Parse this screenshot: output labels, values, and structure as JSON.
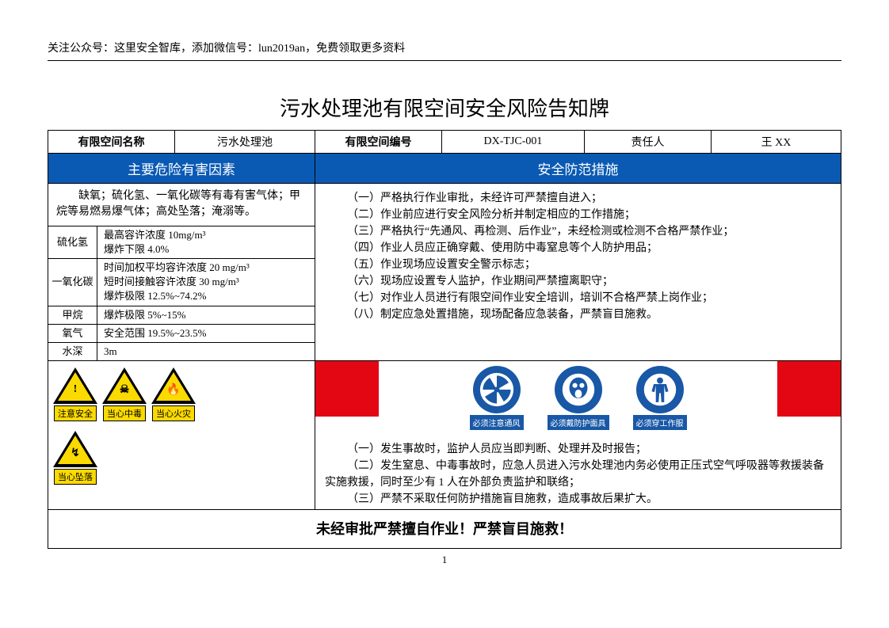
{
  "header_note": "关注公众号：这里安全智库，添加微信号：lun2019an，免费领取更多资料",
  "title": "污水处理池有限空间安全风险告知牌",
  "info_row": {
    "name_label": "有限空间名称",
    "name_value": "污水处理池",
    "id_label": "有限空间编号",
    "id_value": "DX-TJC-001",
    "owner_label": "责任人",
    "owner_value": "王 XX"
  },
  "banner": {
    "left": "主要危险有害因素",
    "right": "安全防范措施",
    "bg_color": "#0a5ab4"
  },
  "hazard_desc": "　　缺氧；硫化氢、一氧化碳等有毒有害气体；甲烷等易燃易爆气体；高处坠落；淹溺等。",
  "hazard_rows": [
    {
      "name": "硫化氢",
      "lines": [
        "最高容许浓度 10mg/m³",
        "爆炸下限 4.0%"
      ]
    },
    {
      "name": "一氧化碳",
      "lines": [
        "时间加权平均容许浓度 20 mg/m³",
        "短时间接触容许浓度 30 mg/m³",
        "爆炸极限 12.5%~74.2%"
      ]
    },
    {
      "name": "甲烷",
      "lines": [
        "爆炸极限 5%~15%"
      ]
    },
    {
      "name": "氧气",
      "lines": [
        "安全范围 19.5%~23.5%"
      ]
    },
    {
      "name": "水深",
      "lines": [
        "3m"
      ]
    }
  ],
  "measures": [
    "（一）严格执行作业审批，未经许可严禁擅自进入；",
    "（二）作业前应进行安全风险分析并制定相应的工作措施；",
    "（三）严格执行“先通风、再检测、后作业”，未经检测或检测不合格严禁作业；",
    "（四）作业人员应正确穿戴、使用防中毒窒息等个人防护用品；",
    "（五）作业现场应设置安全警示标志；",
    "（六）现场应设置专人监护，作业期间严禁擅离职守；",
    "（七）对作业人员进行有限空间作业安全培训，培训不合格严禁上岗作业；",
    "（八）制定应急处置措施，现场配备应急装备，严禁盲目施救。"
  ],
  "warning_signs": [
    {
      "label": "注意安全",
      "glyph": "!"
    },
    {
      "label": "当心中毒",
      "glyph": "☠"
    },
    {
      "label": "当心火灾",
      "glyph": "🔥"
    },
    {
      "label": "当心坠落",
      "glyph": "↯"
    }
  ],
  "mandatory_signs": [
    {
      "label": "必须注意通风",
      "type": "fan"
    },
    {
      "label": "必须戴防护面具",
      "type": "mask"
    },
    {
      "label": "必须穿工作服",
      "type": "suit"
    }
  ],
  "mandatory_color": "#1858a6",
  "red_bar_color": "#e30613",
  "procedures": [
    "（一）发生事故时，监护人员应当即判断、处理并及时报告；",
    "（二）发生窒息、中毒事故时，应急人员进入污水处理池内务必使用正压式空气呼吸器等救援装备实施救援，同时至少有 1 人在外部负责监护和联络；",
    "（三）严禁不采取任何防护措施盲目施救，造成事故后果扩大。"
  ],
  "footer": "未经审批严禁擅自作业！严禁盲目施救！",
  "page_number": "1"
}
